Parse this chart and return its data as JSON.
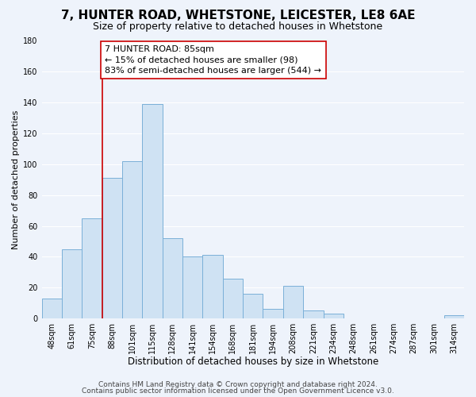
{
  "title": "7, HUNTER ROAD, WHETSTONE, LEICESTER, LE8 6AE",
  "subtitle": "Size of property relative to detached houses in Whetstone",
  "xlabel": "Distribution of detached houses by size in Whetstone",
  "ylabel": "Number of detached properties",
  "bar_labels": [
    "48sqm",
    "61sqm",
    "75sqm",
    "88sqm",
    "101sqm",
    "115sqm",
    "128sqm",
    "141sqm",
    "154sqm",
    "168sqm",
    "181sqm",
    "194sqm",
    "208sqm",
    "221sqm",
    "234sqm",
    "248sqm",
    "261sqm",
    "274sqm",
    "287sqm",
    "301sqm",
    "314sqm"
  ],
  "bar_values": [
    13,
    45,
    65,
    91,
    102,
    139,
    52,
    40,
    41,
    26,
    16,
    6,
    21,
    5,
    3,
    0,
    0,
    0,
    0,
    0,
    2
  ],
  "bar_color": "#cfe2f3",
  "bar_edge_color": "#7ab0d8",
  "vline_color": "#cc0000",
  "annotation_text": "7 HUNTER ROAD: 85sqm\n← 15% of detached houses are smaller (98)\n83% of semi-detached houses are larger (544) →",
  "ylim": [
    0,
    180
  ],
  "yticks": [
    0,
    20,
    40,
    60,
    80,
    100,
    120,
    140,
    160,
    180
  ],
  "footer1": "Contains HM Land Registry data © Crown copyright and database right 2024.",
  "footer2": "Contains public sector information licensed under the Open Government Licence v3.0.",
  "background_color": "#eef3fb",
  "grid_color": "#ffffff",
  "title_fontsize": 11,
  "subtitle_fontsize": 9,
  "xlabel_fontsize": 8.5,
  "ylabel_fontsize": 8,
  "tick_fontsize": 7,
  "annotation_fontsize": 8,
  "footer_fontsize": 6.5
}
